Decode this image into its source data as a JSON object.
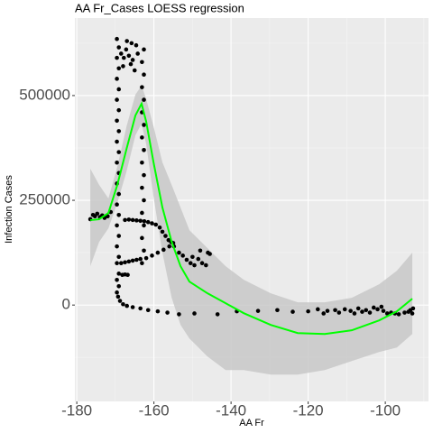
{
  "chart_data": {
    "type": "scatter",
    "title": "AA Fr_Cases LOESS regression",
    "x_label": "AA Fr",
    "y_label": "Infection Cases",
    "xlim": [
      -180.5,
      -88.8
    ],
    "ylim": [
      -230000,
      685000
    ],
    "xticks": [
      -180,
      -160,
      -140,
      -120,
      -100
    ],
    "yticks": [
      0,
      250000,
      500000
    ],
    "xminor": [
      -170,
      -150,
      -130,
      -110,
      -90
    ],
    "yminor": [
      -125000,
      125000,
      375000,
      625000
    ],
    "grid": true,
    "color": "#000000",
    "x": [
      -176.5,
      -175.8,
      -175.3,
      -174.7,
      -174.0,
      -173.4,
      -172.8,
      -172.0,
      -171.2,
      -169.6,
      -169.1,
      -169.6,
      -169.1,
      -169.6,
      -169.1,
      -169.6,
      -169.1,
      -169.6,
      -169.1,
      -169.6,
      -169.1,
      -169.6,
      -169.1,
      -169.6,
      -169.1,
      -169.6,
      -169.1,
      -169.6,
      -169.1,
      -169.6,
      -169.1,
      -169.6,
      -169.1,
      -169.6,
      -169.1,
      -169.6,
      -168.5,
      -167.8,
      -167.2,
      -166.5,
      -166.0,
      -165.5,
      -165.0,
      -164.6,
      -164.2,
      -167.0,
      -165.8,
      -168.0,
      -163.1,
      -162.6,
      -163.1,
      -162.6,
      -163.1,
      -162.6,
      -163.1,
      -162.6,
      -163.1,
      -162.6,
      -163.1,
      -162.6,
      -163.1,
      -162.6,
      -163.1,
      -162.6,
      -163.1,
      -162.6,
      -167.5,
      -166.5,
      -165.5,
      -164.5,
      -163.5,
      -162.5,
      -161.5,
      -160.5,
      -159.5,
      -158.5,
      -157.8,
      -157.0,
      -156.2,
      -155.5,
      -154.8,
      -168.5,
      -167.5,
      -166.5,
      -165.5,
      -164.5,
      -163.5,
      -162.0,
      -160.5,
      -159.0,
      -157.5,
      -156.0,
      -155.0,
      -153.5,
      -152.5,
      -151.5,
      -150.5,
      -149.5,
      -148.5,
      -147.5,
      -146.5,
      -146.0,
      -145.5,
      -148.0,
      -150.0,
      -168.2,
      -167.5,
      -166.8,
      -169.3,
      -168.8,
      -168.0,
      -167.0,
      -165.5,
      -163.5,
      -161.5,
      -159.0,
      -156.5,
      -153.5,
      -149.5,
      -143.5,
      -138.5,
      -133.0,
      -128.0,
      -124.0,
      -120.0,
      -117.5,
      -116.0,
      -115.0,
      -113.0,
      -112.0,
      -110.5,
      -109.0,
      -108.0,
      -107.0,
      -106.0,
      -105.0,
      -104.0,
      -103.0,
      -102.0,
      -101.0,
      -100.5,
      -99.5,
      -98.5,
      -97.5,
      -96.5,
      -95.0,
      -94.0,
      -93.5,
      -93.0,
      -92.8
    ],
    "values": [
      205000,
      215000,
      212000,
      218000,
      210000,
      214000,
      208000,
      212000,
      222000,
      30000,
      45000,
      60000,
      75000,
      100000,
      115000,
      140000,
      165000,
      190000,
      215000,
      240000,
      265000,
      290000,
      315000,
      340000,
      365000,
      390000,
      415000,
      440000,
      465000,
      490000,
      515000,
      540000,
      565000,
      590000,
      615000,
      635000,
      600000,
      590000,
      610000,
      595000,
      575000,
      585000,
      560000,
      620000,
      600000,
      630000,
      625000,
      570000,
      100000,
      130000,
      160000,
      190000,
      220000,
      250000,
      280000,
      310000,
      340000,
      370000,
      400000,
      430000,
      460000,
      490000,
      520000,
      550000,
      580000,
      610000,
      203000,
      204000,
      203000,
      202000,
      201000,
      200000,
      198000,
      195000,
      192000,
      185000,
      175000,
      165000,
      155000,
      150000,
      140000,
      100000,
      102000,
      104000,
      106000,
      108000,
      110000,
      112000,
      118000,
      125000,
      132000,
      140000,
      148000,
      125000,
      118000,
      108000,
      100000,
      95000,
      110000,
      100000,
      95000,
      125000,
      122000,
      130000,
      115000,
      72000,
      73000,
      72000,
      20000,
      10000,
      2000,
      -2000,
      -5000,
      -8000,
      -12000,
      -15000,
      -18000,
      -22000,
      -20000,
      -22000,
      -15000,
      -14000,
      -12000,
      -16000,
      -15000,
      -10000,
      -20000,
      -14000,
      -12000,
      -18000,
      -10000,
      -14000,
      -20000,
      -8000,
      -16000,
      -12000,
      -18000,
      -6000,
      -10000,
      -4000,
      -14000,
      -20000,
      -18000,
      -20000,
      -22000,
      -18000,
      -16000,
      -12000,
      -20000,
      -8000
    ],
    "fit": {
      "color": "#00ff00",
      "band_color": "#c8c8c8",
      "x": [
        -176.5,
        -174.2,
        -171.8,
        -169.5,
        -167.1,
        -164.8,
        -163.2,
        -162.0,
        -160.1,
        -157.8,
        -155.4,
        -153.1,
        -150.8,
        -146.1,
        -141.4,
        -136.7,
        -129.7,
        -122.7,
        -115.7,
        -108.7,
        -101.6,
        -97.0,
        -93.0
      ],
      "values": [
        202600,
        204700,
        219800,
        286600,
        372800,
        452600,
        480600,
        437500,
        340500,
        232800,
        150900,
        92700,
        56000,
        28000,
        4300,
        -19400,
        -47400,
        -66800,
        -69000,
        -60300,
        -36600,
        -15100,
        15100
      ],
      "upper": [
        325400,
        286600,
        254300,
        329700,
        426700,
        502200,
        523700,
        491400,
        426700,
        340500,
        286600,
        232800,
        178900,
        135800,
        92700,
        60300,
        28000,
        6500,
        6500,
        17200,
        49600,
        81900,
        125000
      ],
      "lower": [
        92700,
        150900,
        183200,
        243500,
        319000,
        405200,
        433200,
        383600,
        258600,
        125000,
        17200,
        -47400,
        -79700,
        -122800,
        -155200,
        -155200,
        -165900,
        -165900,
        -155200,
        -133600,
        -112100,
        -101300,
        -69000
      ]
    }
  }
}
